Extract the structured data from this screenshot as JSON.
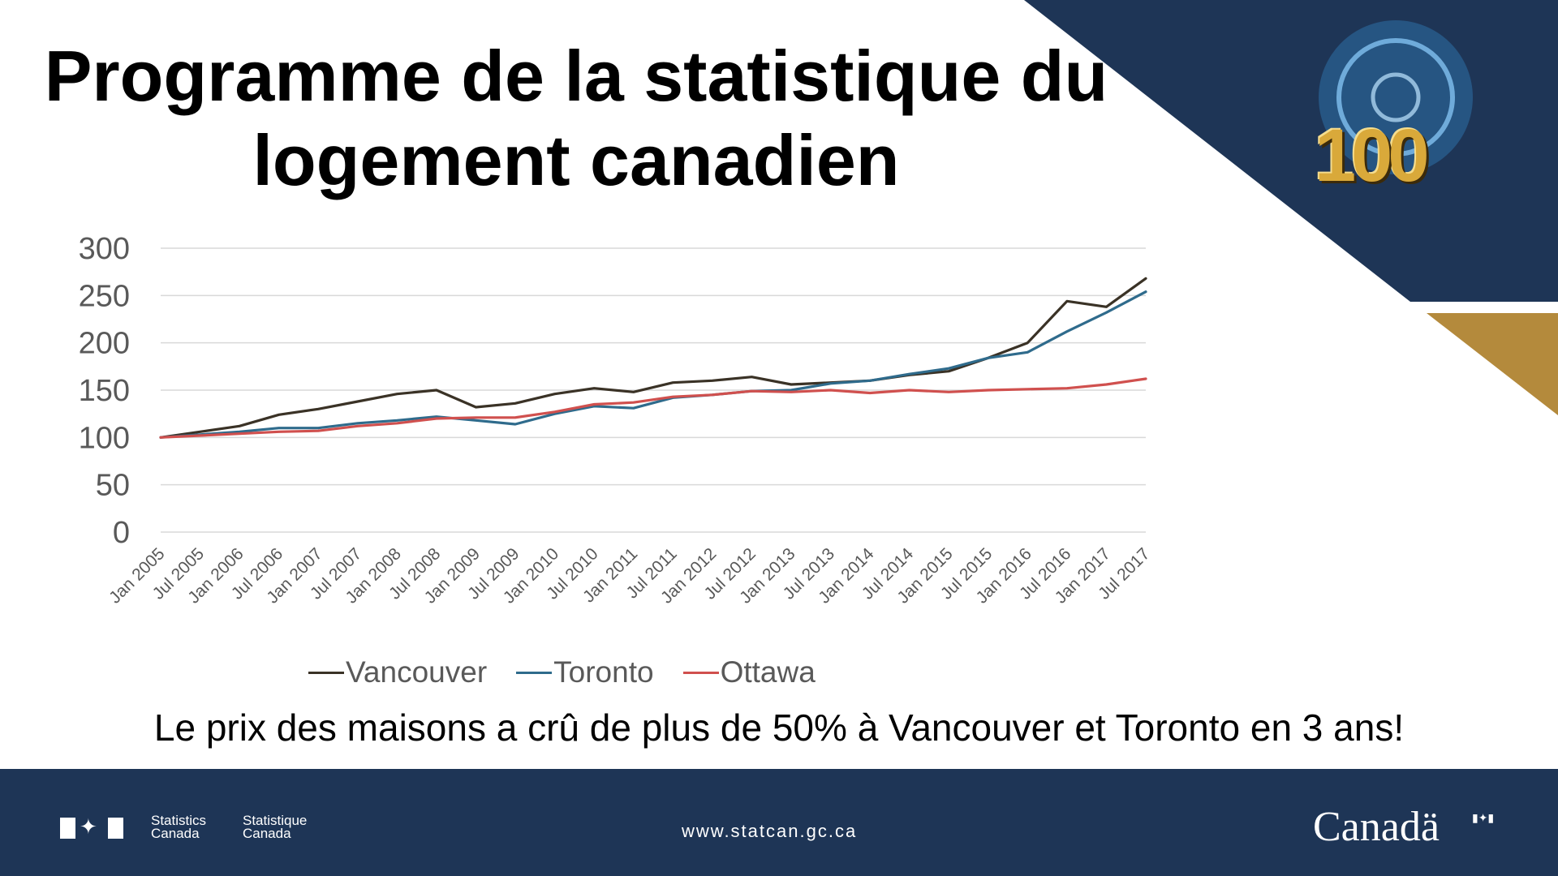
{
  "slide": {
    "title_line1": "Programme de la statistique du",
    "title_line2": "logement canadien",
    "caption": "Le prix des maisons a crû de plus de 50% à Vancouver et Toronto en 3 ans!",
    "badge": "100"
  },
  "footer": {
    "agency_en_line1": "Statistics",
    "agency_en_line2": "Canada",
    "agency_fr_line1": "Statistique",
    "agency_fr_line2": "Canada",
    "url": "www.statcan.gc.ca",
    "wordmark": "Canadä"
  },
  "colors": {
    "navy": "#1e3556",
    "gold": "#b48a3c",
    "vancouver": "#3a3226",
    "toronto": "#2f6b8c",
    "ottawa": "#d0504e"
  },
  "chart_data": {
    "type": "line",
    "title": "",
    "xlabel": "",
    "ylabel": "",
    "ylim": [
      0,
      300
    ],
    "yticks": [
      0,
      50,
      100,
      150,
      200,
      250,
      300
    ],
    "grid": "horizontal",
    "legend": "bottom",
    "x": [
      "Jan 2005",
      "Jul 2005",
      "Jan 2006",
      "Jul 2006",
      "Jan 2007",
      "Jul 2007",
      "Jan 2008",
      "Jul 2008",
      "Jan 2009",
      "Jul 2009",
      "Jan 2010",
      "Jul 2010",
      "Jan 2011",
      "Jul 2011",
      "Jan 2012",
      "Jul 2012",
      "Jan 2013",
      "Jul 2013",
      "Jan 2014",
      "Jul 2014",
      "Jan 2015",
      "Jul 2015",
      "Jan 2016",
      "Jul 2016",
      "Jan 2017",
      "Jul 2017"
    ],
    "series": [
      {
        "name": "Vancouver",
        "values": [
          100,
          106,
          112,
          124,
          130,
          138,
          146,
          150,
          132,
          136,
          146,
          152,
          148,
          158,
          160,
          164,
          156,
          158,
          160,
          166,
          170,
          184,
          200,
          244,
          238,
          268
        ]
      },
      {
        "name": "Toronto",
        "values": [
          100,
          103,
          106,
          110,
          110,
          115,
          118,
          122,
          118,
          114,
          125,
          133,
          131,
          142,
          145,
          149,
          150,
          157,
          160,
          167,
          173,
          184,
          190,
          212,
          232,
          254
        ]
      },
      {
        "name": "Ottawa",
        "values": [
          100,
          102,
          104,
          106,
          107,
          112,
          115,
          120,
          121,
          121,
          127,
          135,
          137,
          143,
          145,
          149,
          148,
          150,
          147,
          150,
          148,
          150,
          151,
          152,
          156,
          162
        ]
      }
    ]
  }
}
